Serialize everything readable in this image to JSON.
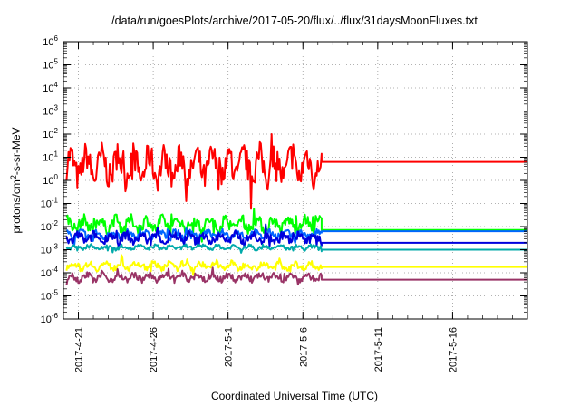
{
  "chart_data": {
    "type": "line",
    "title": "/data/run/goesPlots/archive/2017-05-20/flux/../flux/31daysMoonFluxes.txt",
    "xlabel": "Coordinated Universal Time (UTC)",
    "ylabel": "protons/cm²-s-sr-MeV",
    "y_scale": "log",
    "ylim_exponents": [
      -6,
      6
    ],
    "y_tick_labels": [
      "10-6",
      "10-5",
      "10-4",
      "10-3",
      "10-2",
      "10-1",
      "100",
      "101",
      "102",
      "103",
      "104",
      "105",
      "106"
    ],
    "x_tick_labels": [
      "2017-4-21",
      "2017-4-26",
      "2017-5-1",
      "2017-5-6",
      "2017-5-11",
      "2017-5-16"
    ],
    "x_tick_dates": [
      "2017-04-21",
      "2017-04-26",
      "2017-05-01",
      "2017-05-06",
      "2017-05-11",
      "2017-05-16"
    ],
    "xlim": [
      "2017-04-20",
      "2017-05-21"
    ],
    "data_end": "2017-05-07T06:00",
    "grid": true,
    "legend": "none",
    "series": [
      {
        "color": "#ff0000",
        "typical_log10": 0.6,
        "range_log10": [
          -1.5,
          2.0
        ],
        "noise": 1.1,
        "final_log10": 0.8
      },
      {
        "color": "#00ff00",
        "typical_log10": -1.9,
        "range_log10": [
          -2.8,
          -1.0
        ],
        "noise": 0.45,
        "final_log10": -2.15
      },
      {
        "color": "#0066ff",
        "typical_log10": -2.35,
        "range_log10": [
          -2.9,
          -1.7
        ],
        "noise": 0.25,
        "final_log10": -2.2
      },
      {
        "color": "#0000dd",
        "typical_log10": -2.5,
        "range_log10": [
          -3.1,
          -1.9
        ],
        "noise": 0.35,
        "final_log10": -2.7
      },
      {
        "color": "#00aaaa",
        "typical_log10": -2.9,
        "range_log10": [
          -3.2,
          -2.4
        ],
        "noise": 0.15,
        "final_log10": -3.0
      },
      {
        "color": "#ffff00",
        "typical_log10": -3.7,
        "range_log10": [
          -4.2,
          -3.1
        ],
        "noise": 0.25,
        "final_log10": -3.75
      },
      {
        "color": "#993366",
        "typical_log10": -4.2,
        "range_log10": [
          -4.7,
          -3.6
        ],
        "noise": 0.25,
        "final_log10": -4.3
      }
    ]
  }
}
